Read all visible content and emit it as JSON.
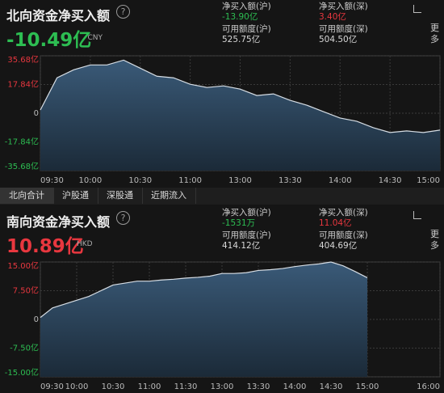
{
  "panels": [
    {
      "title": "北向资金净买入额",
      "value": "-10.49亿",
      "value_color": "#2dbd52",
      "currency": "CNY",
      "more": "更多",
      "stats": [
        {
          "label": "净买入额(沪)",
          "value": "-13.90亿",
          "color": "#2dbd52"
        },
        {
          "label": "净买入额(深)",
          "value": "3.40亿",
          "color": "#e8373f"
        },
        {
          "label": "可用额度(沪)",
          "value": "525.75亿",
          "color": "#d8d8d8"
        },
        {
          "label": "可用额度(深)",
          "value": "504.50亿",
          "color": "#d8d8d8"
        }
      ]
    },
    {
      "title": "南向资金净买入额",
      "value": "10.89亿",
      "value_color": "#e8373f",
      "currency": "HKD",
      "more": "更多",
      "stats": [
        {
          "label": "净买入额(沪)",
          "value": "-1531万",
          "color": "#2dbd52"
        },
        {
          "label": "净买入额(深)",
          "value": "11.04亿",
          "color": "#e8373f"
        },
        {
          "label": "可用额度(沪)",
          "value": "414.12亿",
          "color": "#d8d8d8"
        },
        {
          "label": "可用额度(深)",
          "value": "404.69亿",
          "color": "#d8d8d8"
        }
      ]
    }
  ],
  "tabs": [
    "北向合计",
    "沪股通",
    "深股通",
    "近期流入"
  ],
  "chart_data": [
    {
      "type": "area",
      "color": "#d6dde4",
      "grid": true,
      "categories": [
        "09:30",
        null,
        null,
        "10:00",
        null,
        null,
        "10:30",
        null,
        null,
        "11:00",
        null,
        null,
        "13:00",
        null,
        null,
        "13:30",
        null,
        null,
        "14:00",
        null,
        null,
        "14:30",
        null,
        null,
        "15:00"
      ],
      "values": [
        2,
        22,
        27,
        30,
        30,
        33,
        28,
        23,
        22,
        18,
        16,
        17,
        15,
        11,
        12,
        8,
        5,
        1,
        -3,
        -5,
        -9,
        -12,
        -11,
        -12,
        -10.49
      ],
      "ylim": [
        -35.68,
        35.68
      ],
      "yticks": [
        {
          "value": 35.68,
          "label": "35.68亿"
        },
        {
          "value": 17.84,
          "label": "17.84亿"
        },
        0,
        {
          "value": -17.84,
          "label": "-17.84亿"
        },
        {
          "value": -35.68,
          "label": "-35.68亿"
        }
      ]
    },
    {
      "type": "area",
      "color": "#d6dde4",
      "grid": true,
      "categories": [
        "09:30",
        null,
        null,
        "10:00",
        null,
        null,
        "10:30",
        null,
        null,
        "11:00",
        null,
        null,
        "11:30",
        null,
        null,
        "13:00",
        null,
        null,
        "13:30",
        null,
        null,
        "14:00",
        null,
        null,
        "14:30",
        null,
        null,
        "15:00",
        null,
        null,
        null,
        null,
        null,
        "16:00"
      ],
      "values": [
        0.5,
        3,
        4,
        5,
        6,
        7.5,
        9,
        9.5,
        10,
        10,
        10.3,
        10.5,
        10.8,
        11,
        11.3,
        12,
        12,
        12.2,
        12.8,
        13,
        13.3,
        13.8,
        14.2,
        14.5,
        15,
        14,
        12.5,
        10.89,
        null,
        null,
        null,
        null,
        null,
        null
      ],
      "ylim": [
        -15,
        15
      ],
      "yticks": [
        {
          "value": 15,
          "label": "15.00亿"
        },
        {
          "value": 7.5,
          "label": "7.50亿"
        },
        0,
        {
          "value": -7.5,
          "label": "-7.50亿"
        },
        {
          "value": -15,
          "label": "-15.00亿"
        }
      ]
    }
  ]
}
